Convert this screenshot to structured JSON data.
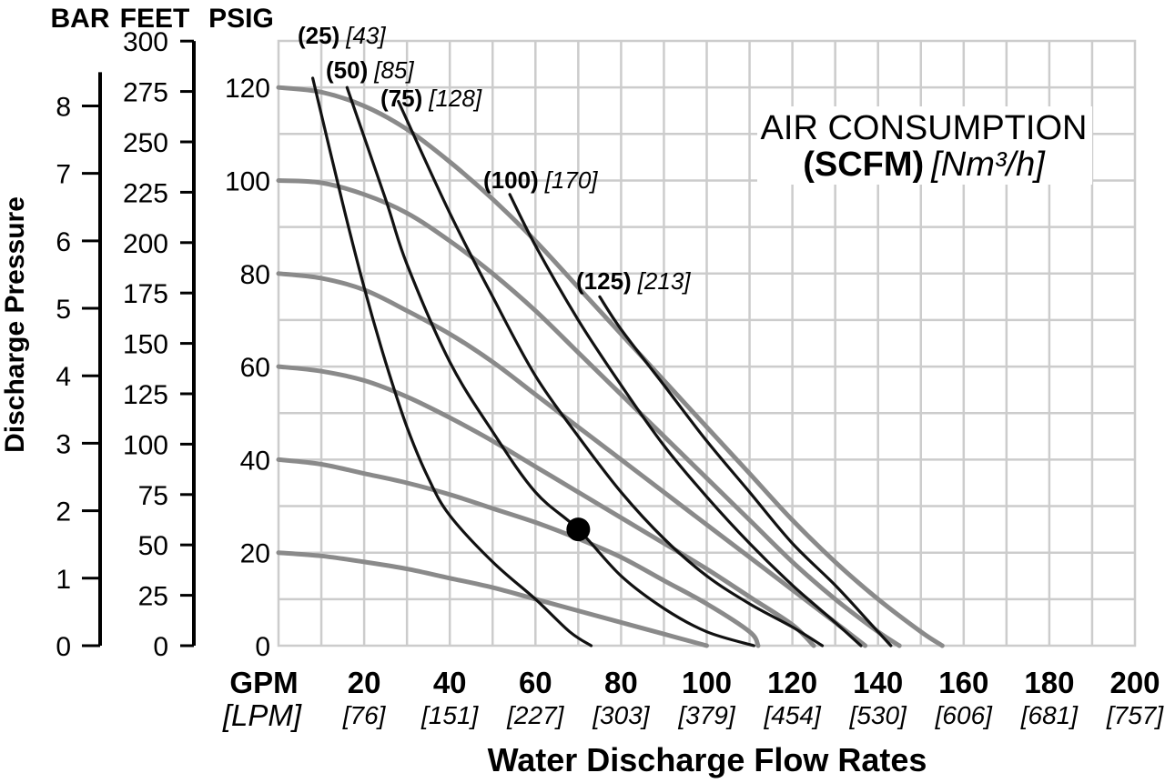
{
  "chart_data": {
    "type": "line",
    "title_line1": "AIR CONSUMPTION",
    "title_line2_bold": "(SCFM)",
    "title_line2_ital": "[Nm³/h]",
    "xlabel": "Water Discharge Flow Rates",
    "ylabel": "Discharge Pressure",
    "xlim": [
      0,
      200
    ],
    "ylim": [
      0,
      130
    ],
    "grid": true,
    "x_unit_primary": "GPM",
    "x_unit_secondary": "[LPM]",
    "x_ticks": [
      {
        "gpm": "20",
        "lpm": "[76]",
        "value": 20
      },
      {
        "gpm": "40",
        "lpm": "[151]",
        "value": 40
      },
      {
        "gpm": "60",
        "lpm": "[227]",
        "value": 60
      },
      {
        "gpm": "80",
        "lpm": "[303]",
        "value": 80
      },
      {
        "gpm": "100",
        "lpm": "[379]",
        "value": 100
      },
      {
        "gpm": "120",
        "lpm": "[454]",
        "value": 120
      },
      {
        "gpm": "140",
        "lpm": "[530]",
        "value": 140
      },
      {
        "gpm": "160",
        "lpm": "[606]",
        "value": 160
      },
      {
        "gpm": "180",
        "lpm": "[681]",
        "value": 180
      },
      {
        "gpm": "200",
        "lpm": "[757]",
        "value": 200
      }
    ],
    "psig_axis": {
      "label": "PSIG",
      "ticks": [
        {
          "label": "0",
          "value": 0
        },
        {
          "label": "20",
          "value": 20
        },
        {
          "label": "40",
          "value": 40
        },
        {
          "label": "60",
          "value": 60
        },
        {
          "label": "80",
          "value": 80
        },
        {
          "label": "100",
          "value": 100
        },
        {
          "label": "120",
          "value": 120
        }
      ]
    },
    "feet_axis": {
      "label": "FEET",
      "ticks": [
        {
          "label": "0",
          "value": 0
        },
        {
          "label": "25",
          "value": 25
        },
        {
          "label": "50",
          "value": 50
        },
        {
          "label": "75",
          "value": 75
        },
        {
          "label": "100",
          "value": 100
        },
        {
          "label": "125",
          "value": 125
        },
        {
          "label": "150",
          "value": 150
        },
        {
          "label": "175",
          "value": 175
        },
        {
          "label": "200",
          "value": 200
        },
        {
          "label": "225",
          "value": 225
        },
        {
          "label": "250",
          "value": 250
        },
        {
          "label": "275",
          "value": 275
        },
        {
          "label": "300",
          "value": 300
        }
      ]
    },
    "bar_axis": {
      "label": "BAR",
      "ticks": [
        {
          "label": "0",
          "value": 0
        },
        {
          "label": "1",
          "value": 1
        },
        {
          "label": "2",
          "value": 2
        },
        {
          "label": "3",
          "value": 3
        },
        {
          "label": "4",
          "value": 4
        },
        {
          "label": "5",
          "value": 5
        },
        {
          "label": "6",
          "value": 6
        },
        {
          "label": "7",
          "value": 7
        },
        {
          "label": "8",
          "value": 8
        }
      ]
    },
    "pressure_curves": [
      {
        "inlet_psig": 120,
        "points": [
          [
            0,
            120
          ],
          [
            10,
            119
          ],
          [
            20,
            116
          ],
          [
            30,
            111
          ],
          [
            40,
            104
          ],
          [
            50,
            96
          ],
          [
            60,
            87
          ],
          [
            70,
            77
          ],
          [
            80,
            67
          ],
          [
            90,
            57
          ],
          [
            100,
            47
          ],
          [
            110,
            37
          ],
          [
            120,
            27
          ],
          [
            130,
            18
          ],
          [
            140,
            10
          ],
          [
            150,
            3
          ],
          [
            155,
            0
          ]
        ]
      },
      {
        "inlet_psig": 100,
        "points": [
          [
            0,
            100
          ],
          [
            10,
            99.5
          ],
          [
            20,
            97
          ],
          [
            30,
            93
          ],
          [
            40,
            87
          ],
          [
            50,
            80
          ],
          [
            60,
            72
          ],
          [
            70,
            63
          ],
          [
            80,
            54
          ],
          [
            90,
            45
          ],
          [
            100,
            36
          ],
          [
            110,
            27
          ],
          [
            120,
            18
          ],
          [
            130,
            10
          ],
          [
            140,
            3
          ],
          [
            145,
            0
          ]
        ]
      },
      {
        "inlet_psig": 80,
        "points": [
          [
            0,
            80
          ],
          [
            10,
            79
          ],
          [
            20,
            76.5
          ],
          [
            30,
            72
          ],
          [
            40,
            67
          ],
          [
            50,
            61
          ],
          [
            60,
            54
          ],
          [
            70,
            47
          ],
          [
            80,
            40
          ],
          [
            90,
            33
          ],
          [
            100,
            26
          ],
          [
            110,
            19
          ],
          [
            120,
            12
          ],
          [
            130,
            5
          ],
          [
            137,
            0
          ]
        ]
      },
      {
        "inlet_psig": 60,
        "points": [
          [
            0,
            60
          ],
          [
            10,
            59
          ],
          [
            20,
            57
          ],
          [
            30,
            53.5
          ],
          [
            40,
            49
          ],
          [
            50,
            44
          ],
          [
            60,
            38.5
          ],
          [
            70,
            33
          ],
          [
            80,
            27.5
          ],
          [
            90,
            22
          ],
          [
            100,
            16.5
          ],
          [
            110,
            10.5
          ],
          [
            120,
            4.5
          ],
          [
            125,
            0
          ]
        ]
      },
      {
        "inlet_psig": 40,
        "points": [
          [
            0,
            40
          ],
          [
            10,
            39
          ],
          [
            20,
            37
          ],
          [
            30,
            35
          ],
          [
            40,
            32.5
          ],
          [
            50,
            29.5
          ],
          [
            60,
            26.5
          ],
          [
            70,
            23
          ],
          [
            80,
            19
          ],
          [
            90,
            14
          ],
          [
            100,
            9
          ],
          [
            110,
            3
          ],
          [
            112,
            0
          ]
        ]
      },
      {
        "inlet_psig": 20,
        "points": [
          [
            0,
            20
          ],
          [
            10,
            19.3
          ],
          [
            20,
            18
          ],
          [
            30,
            16.5
          ],
          [
            40,
            14.5
          ],
          [
            50,
            12.5
          ],
          [
            60,
            10
          ],
          [
            70,
            7.5
          ],
          [
            80,
            5
          ],
          [
            90,
            2.5
          ],
          [
            100,
            0
          ]
        ]
      }
    ],
    "air_consumption_curves": [
      {
        "name": "(25)",
        "metric": "[43]",
        "points": [
          [
            8,
            122
          ],
          [
            15,
            95
          ],
          [
            20,
            77
          ],
          [
            25,
            61
          ],
          [
            30,
            47
          ],
          [
            35,
            36
          ],
          [
            40,
            28
          ],
          [
            50,
            18
          ],
          [
            60,
            10
          ],
          [
            68,
            3
          ],
          [
            73,
            0
          ]
        ]
      },
      {
        "name": "(50)",
        "metric": "[85]",
        "points": [
          [
            16,
            120
          ],
          [
            25,
            96
          ],
          [
            30,
            82
          ],
          [
            40,
            61
          ],
          [
            50,
            46
          ],
          [
            60,
            33
          ],
          [
            70,
            25
          ],
          [
            80,
            15
          ],
          [
            90,
            8
          ],
          [
            100,
            3
          ],
          [
            111,
            0
          ]
        ]
      },
      {
        "name": "(75)",
        "metric": "[128]",
        "points": [
          [
            28,
            117
          ],
          [
            40,
            93
          ],
          [
            50,
            75
          ],
          [
            60,
            58
          ],
          [
            70,
            45
          ],
          [
            80,
            33
          ],
          [
            90,
            23
          ],
          [
            100,
            15
          ],
          [
            110,
            9
          ],
          [
            120,
            4
          ],
          [
            127,
            0
          ]
        ]
      },
      {
        "name": "(100)",
        "metric": "[170]",
        "points": [
          [
            54,
            97
          ],
          [
            60,
            86
          ],
          [
            70,
            70
          ],
          [
            80,
            56
          ],
          [
            90,
            43
          ],
          [
            100,
            32
          ],
          [
            110,
            22
          ],
          [
            120,
            13
          ],
          [
            130,
            5
          ],
          [
            136,
            0
          ]
        ]
      },
      {
        "name": "(125)",
        "metric": "[213]",
        "points": [
          [
            75,
            75
          ],
          [
            80,
            68
          ],
          [
            90,
            56
          ],
          [
            100,
            44
          ],
          [
            110,
            33
          ],
          [
            120,
            22
          ],
          [
            130,
            13
          ],
          [
            138,
            5
          ],
          [
            143,
            0
          ]
        ]
      }
    ],
    "marker": {
      "x": 70,
      "y": 25
    }
  }
}
